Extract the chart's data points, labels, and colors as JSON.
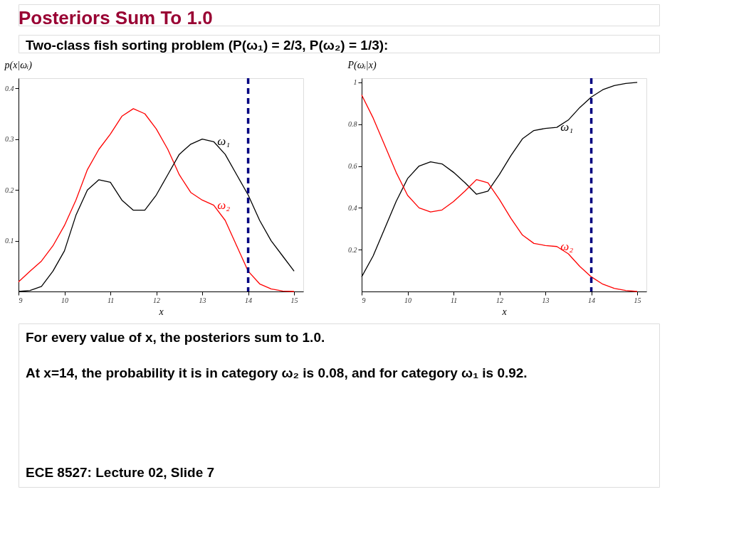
{
  "chart_data": [
    {
      "type": "line",
      "title": "Posteriors Sum To 1.0",
      "subtitle": "Two-class fish sorting problem (P(ω₁) = 2/3, P(ω₂) = 1/3):",
      "xlabel": "x",
      "ylabel": "p(x|ωᵢ)",
      "x": [
        9,
        9.25,
        9.5,
        9.75,
        10,
        10.25,
        10.5,
        10.75,
        11,
        11.25,
        11.5,
        11.75,
        12,
        12.25,
        12.5,
        12.75,
        13,
        13.25,
        13.5,
        13.75,
        14,
        14.25,
        14.5,
        14.75,
        15
      ],
      "series": [
        {
          "name": "ω₂",
          "color": "#ff0000",
          "values": [
            0.019,
            0.04,
            0.06,
            0.09,
            0.13,
            0.18,
            0.24,
            0.28,
            0.31,
            0.345,
            0.36,
            0.35,
            0.32,
            0.28,
            0.23,
            0.195,
            0.18,
            0.17,
            0.14,
            0.09,
            0.04,
            0.015,
            0.005,
            0.001,
            0
          ]
        },
        {
          "name": "ω₁",
          "color": "#000000",
          "values": [
            0,
            0.002,
            0.01,
            0.04,
            0.08,
            0.15,
            0.2,
            0.22,
            0.215,
            0.18,
            0.16,
            0.16,
            0.19,
            0.23,
            0.27,
            0.29,
            0.3,
            0.295,
            0.27,
            0.23,
            0.19,
            0.14,
            0.1,
            0.07,
            0.04
          ]
        }
      ],
      "xlim": [
        9,
        15.2
      ],
      "xticks": [
        9,
        10,
        11,
        12,
        13,
        14,
        15
      ],
      "ylim": [
        0,
        0.42
      ],
      "yticks": [
        0.1,
        0.2,
        0.3,
        0.4
      ],
      "ref_lines": [
        {
          "axis": "x",
          "value": 14,
          "color": "#000080",
          "line_style": "dashed"
        }
      ],
      "grid": false,
      "legend": false,
      "line_style": "solid"
    },
    {
      "type": "line",
      "xlabel": "x",
      "ylabel": "P(ωᵢ|x)",
      "x": [
        9,
        9.25,
        9.5,
        9.75,
        10,
        10.25,
        10.5,
        10.75,
        11,
        11.25,
        11.5,
        11.75,
        12,
        12.25,
        12.5,
        12.75,
        13,
        13.25,
        13.5,
        13.75,
        14,
        14.25,
        14.5,
        14.75,
        15
      ],
      "series": [
        {
          "name": "ω₁",
          "color": "#000000",
          "values": [
            0.07,
            0.17,
            0.3,
            0.43,
            0.54,
            0.6,
            0.62,
            0.61,
            0.57,
            0.52,
            0.465,
            0.48,
            0.56,
            0.65,
            0.73,
            0.77,
            0.78,
            0.785,
            0.82,
            0.88,
            0.93,
            0.965,
            0.985,
            0.995,
            1.0
          ]
        },
        {
          "name": "ω₂",
          "color": "#ff0000",
          "values": [
            0.94,
            0.83,
            0.7,
            0.57,
            0.46,
            0.4,
            0.38,
            0.39,
            0.43,
            0.48,
            0.535,
            0.52,
            0.44,
            0.35,
            0.27,
            0.23,
            0.22,
            0.215,
            0.18,
            0.12,
            0.07,
            0.035,
            0.015,
            0.005,
            0
          ]
        }
      ],
      "xlim": [
        9,
        15.2
      ],
      "xticks": [
        9,
        10,
        11,
        12,
        13,
        14,
        15
      ],
      "ylim": [
        0,
        1.02
      ],
      "yticks": [
        0.2,
        0.4,
        0.6,
        0.8,
        1
      ],
      "ref_lines": [
        {
          "axis": "x",
          "value": 14,
          "color": "#000080",
          "line_style": "dashed"
        }
      ],
      "grid": false,
      "legend": false,
      "line_style": "solid",
      "annotations": [
        "For every value of x, the posteriors sum to 1.0.",
        "At x=14, the probability it is in category ω₂ is 0.08, and for category ω₁ is 0.92.",
        "ECE 8527: Lecture 02, Slide 7"
      ]
    }
  ]
}
